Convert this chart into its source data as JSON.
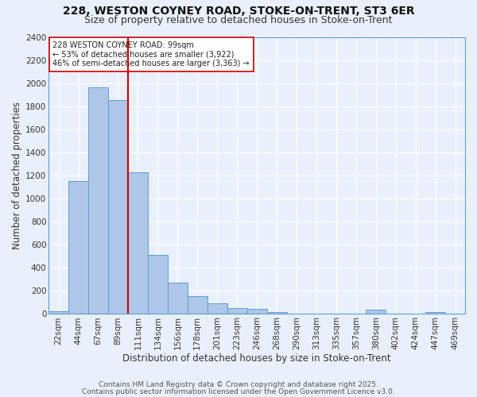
{
  "title_line1": "228, WESTON COYNEY ROAD, STOKE-ON-TRENT, ST3 6ER",
  "title_line2": "Size of property relative to detached houses in Stoke-on-Trent",
  "xlabel": "Distribution of detached houses by size in Stoke-on-Trent",
  "ylabel": "Number of detached properties",
  "categories": [
    "22sqm",
    "44sqm",
    "67sqm",
    "89sqm",
    "111sqm",
    "134sqm",
    "156sqm",
    "178sqm",
    "201sqm",
    "223sqm",
    "246sqm",
    "268sqm",
    "290sqm",
    "313sqm",
    "335sqm",
    "357sqm",
    "380sqm",
    "402sqm",
    "424sqm",
    "447sqm",
    "469sqm"
  ],
  "values": [
    25,
    1155,
    1960,
    1850,
    1230,
    515,
    270,
    155,
    90,
    50,
    45,
    18,
    5,
    0,
    2,
    0,
    35,
    0,
    0,
    15,
    0
  ],
  "bar_color": "#aec6e8",
  "bar_edge_color": "#5a9fd4",
  "bg_color": "#eaf0fb",
  "grid_color": "#ffffff",
  "vline_color": "#cc0000",
  "annotation_text": "228 WESTON COYNEY ROAD: 99sqm\n← 53% of detached houses are smaller (3,922)\n46% of semi-detached houses are larger (3,363) →",
  "annotation_box_color": "#ffffff",
  "annotation_box_edge": "#cc0000",
  "footer_line1": "Contains HM Land Registry data © Crown copyright and database right 2025.",
  "footer_line2": "Contains public sector information licensed under the Open Government Licence v3.0.",
  "ylim": [
    0,
    2400
  ],
  "title_fontsize": 10,
  "subtitle_fontsize": 9,
  "axis_label_fontsize": 8.5,
  "tick_fontsize": 7.5,
  "annotation_fontsize": 7,
  "footer_fontsize": 6.5
}
